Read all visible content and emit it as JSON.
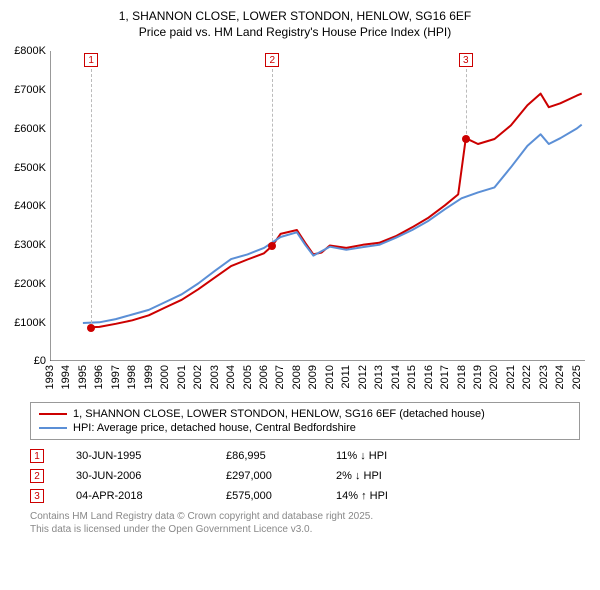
{
  "title": {
    "line1": "1, SHANNON CLOSE, LOWER STONDON, HENLOW, SG16 6EF",
    "line2": "Price paid vs. HM Land Registry's House Price Index (HPI)"
  },
  "chart": {
    "type": "line",
    "background_color": "#ffffff",
    "axis_color": "#333333",
    "y": {
      "min": 0,
      "max": 800000,
      "ticks": [
        0,
        100000,
        200000,
        300000,
        400000,
        500000,
        600000,
        700000,
        800000
      ],
      "labels": [
        "£0",
        "£100K",
        "£200K",
        "£300K",
        "£400K",
        "£500K",
        "£600K",
        "£700K",
        "£800K"
      ],
      "label_fontsize": 11
    },
    "x": {
      "min": 1993,
      "max": 2025.5,
      "ticks": [
        1993,
        1994,
        1995,
        1996,
        1997,
        1998,
        1999,
        2000,
        2001,
        2002,
        2003,
        2004,
        2005,
        2006,
        2007,
        2008,
        2009,
        2010,
        2011,
        2012,
        2013,
        2014,
        2015,
        2016,
        2017,
        2018,
        2019,
        2020,
        2021,
        2022,
        2023,
        2024,
        2025
      ],
      "label_fontsize": 11
    },
    "series": [
      {
        "name": "1, SHANNON CLOSE, LOWER STONDON, HENLOW, SG16 6EF (detached house)",
        "color": "#cc0000",
        "line_width": 2,
        "points": [
          [
            1995.5,
            86995
          ],
          [
            1996,
            88000
          ],
          [
            1997,
            96000
          ],
          [
            1998,
            105000
          ],
          [
            1999,
            118000
          ],
          [
            2000,
            138000
          ],
          [
            2001,
            158000
          ],
          [
            2002,
            185000
          ],
          [
            2003,
            215000
          ],
          [
            2004,
            245000
          ],
          [
            2005,
            262000
          ],
          [
            2006,
            278000
          ],
          [
            2006.5,
            297000
          ],
          [
            2007,
            328000
          ],
          [
            2008,
            338000
          ],
          [
            2008.5,
            305000
          ],
          [
            2009,
            275000
          ],
          [
            2009.5,
            280000
          ],
          [
            2010,
            298000
          ],
          [
            2011,
            292000
          ],
          [
            2012,
            300000
          ],
          [
            2013,
            305000
          ],
          [
            2014,
            322000
          ],
          [
            2015,
            345000
          ],
          [
            2016,
            370000
          ],
          [
            2017,
            402000
          ],
          [
            2017.8,
            430000
          ],
          [
            2018.26,
            575000
          ],
          [
            2019,
            560000
          ],
          [
            2020,
            573000
          ],
          [
            2021,
            608000
          ],
          [
            2022,
            660000
          ],
          [
            2022.8,
            690000
          ],
          [
            2023.3,
            655000
          ],
          [
            2024,
            665000
          ],
          [
            2025,
            685000
          ],
          [
            2025.3,
            690000
          ]
        ]
      },
      {
        "name": "HPI: Average price, detached house, Central Bedfordshire",
        "color": "#5b8fd6",
        "line_width": 2,
        "points": [
          [
            1995,
            98000
          ],
          [
            1996,
            100000
          ],
          [
            1997,
            108000
          ],
          [
            1998,
            120000
          ],
          [
            1999,
            132000
          ],
          [
            2000,
            152000
          ],
          [
            2001,
            172000
          ],
          [
            2002,
            200000
          ],
          [
            2003,
            232000
          ],
          [
            2004,
            263000
          ],
          [
            2005,
            275000
          ],
          [
            2006,
            292000
          ],
          [
            2007,
            320000
          ],
          [
            2008,
            332000
          ],
          [
            2008.5,
            300000
          ],
          [
            2009,
            272000
          ],
          [
            2010,
            295000
          ],
          [
            2011,
            287000
          ],
          [
            2012,
            294000
          ],
          [
            2013,
            300000
          ],
          [
            2014,
            318000
          ],
          [
            2015,
            338000
          ],
          [
            2016,
            362000
          ],
          [
            2017,
            392000
          ],
          [
            2018,
            420000
          ],
          [
            2019,
            435000
          ],
          [
            2020,
            448000
          ],
          [
            2021,
            500000
          ],
          [
            2022,
            555000
          ],
          [
            2022.8,
            585000
          ],
          [
            2023.3,
            560000
          ],
          [
            2024,
            575000
          ],
          [
            2025,
            600000
          ],
          [
            2025.3,
            610000
          ]
        ]
      }
    ],
    "markers": [
      {
        "n": "1",
        "x": 1995.5,
        "y": 86995,
        "color": "#cc0000"
      },
      {
        "n": "2",
        "x": 2006.5,
        "y": 297000,
        "color": "#cc0000"
      },
      {
        "n": "3",
        "x": 2018.26,
        "y": 575000,
        "color": "#cc0000"
      }
    ]
  },
  "legend": {
    "items": [
      {
        "color": "#cc0000",
        "label": "1, SHANNON CLOSE, LOWER STONDON, HENLOW, SG16 6EF (detached house)"
      },
      {
        "color": "#5b8fd6",
        "label": "HPI: Average price, detached house, Central Bedfordshire"
      }
    ]
  },
  "sales": [
    {
      "n": "1",
      "date": "30-JUN-1995",
      "price": "£86,995",
      "delta": "11% ↓ HPI"
    },
    {
      "n": "2",
      "date": "30-JUN-2006",
      "price": "£297,000",
      "delta": "2% ↓ HPI"
    },
    {
      "n": "3",
      "date": "04-APR-2018",
      "price": "£575,000",
      "delta": "14% ↑ HPI"
    }
  ],
  "footer": {
    "line1": "Contains HM Land Registry data © Crown copyright and database right 2025.",
    "line2": "This data is licensed under the Open Government Licence v3.0."
  }
}
